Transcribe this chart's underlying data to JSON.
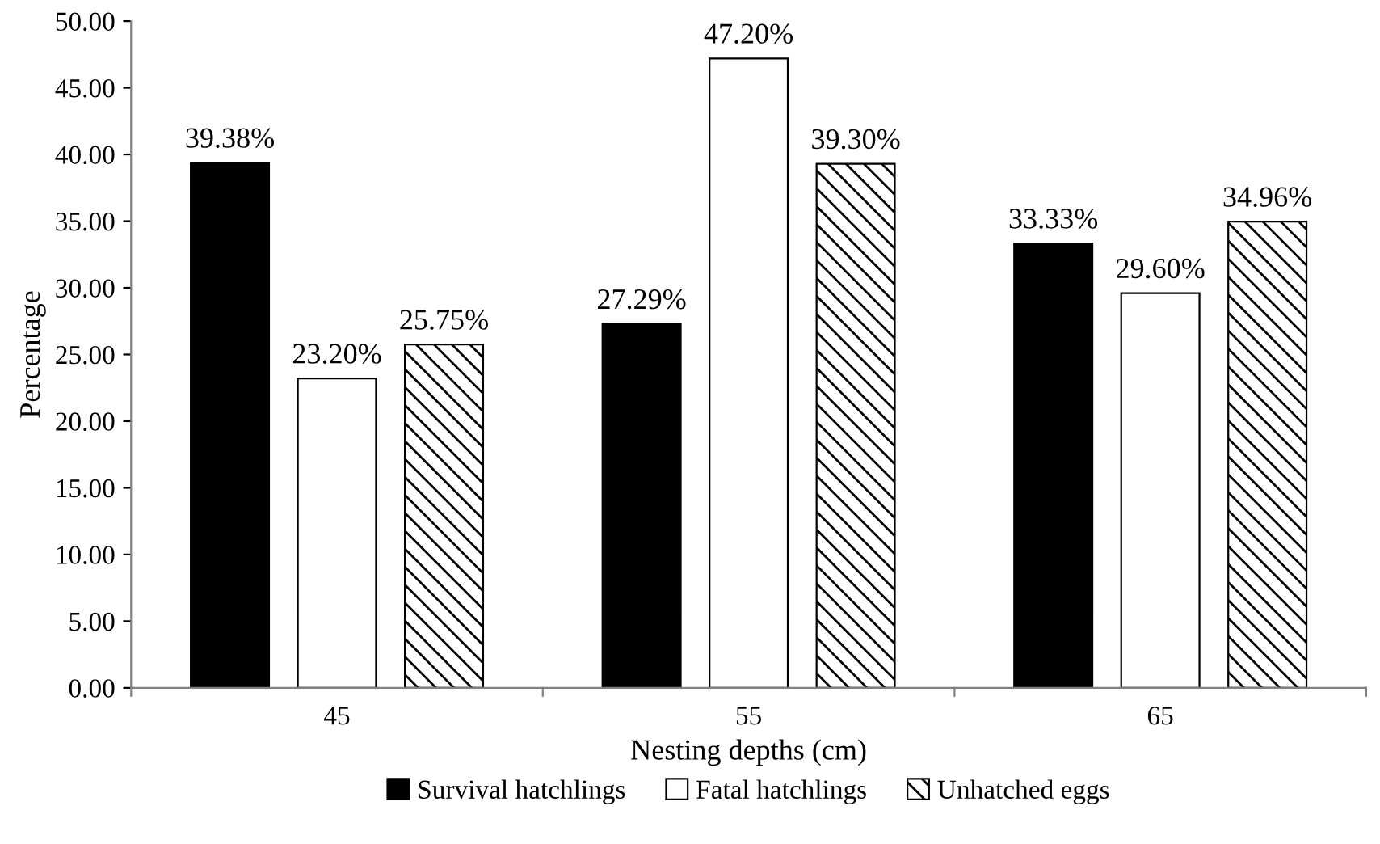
{
  "chart_data": {
    "type": "bar",
    "xlabel": "Nesting depths (cm)",
    "ylabel": "Percentage",
    "categories": [
      "45",
      "55",
      "65"
    ],
    "series": [
      {
        "name": "Survival hatchlings",
        "color": "#000000",
        "values": [
          39.38,
          27.29,
          33.33
        ],
        "value_labels": [
          "39.38%",
          "27.29%",
          "33.33%"
        ]
      },
      {
        "name": "Fatal hatchlings",
        "color": "#ffffff",
        "values": [
          23.2,
          47.2,
          29.6
        ],
        "value_labels": [
          "23.20%",
          "47.20%",
          "29.60%"
        ]
      },
      {
        "name": "Unhatched eggs",
        "color": "#000000",
        "values": [
          25.75,
          39.3,
          34.96
        ],
        "value_labels": [
          "25.75%",
          "39.30%",
          "34.96%"
        ]
      }
    ],
    "ylim": [
      0,
      50
    ],
    "yticks": [
      {
        "value": 0,
        "label": "0.00"
      },
      {
        "value": 5,
        "label": "5.00"
      },
      {
        "value": 10,
        "label": "10.00"
      },
      {
        "value": 15,
        "label": "15.00"
      },
      {
        "value": 20,
        "label": "20.00"
      },
      {
        "value": 25,
        "label": "25.00"
      },
      {
        "value": 30,
        "label": "30.00"
      },
      {
        "value": 35,
        "label": "35.00"
      },
      {
        "value": 40,
        "label": "40.00"
      },
      {
        "value": 45,
        "label": "45.00"
      },
      {
        "value": 50,
        "label": "50.00"
      }
    ],
    "grid": false,
    "legend": "bottom"
  }
}
